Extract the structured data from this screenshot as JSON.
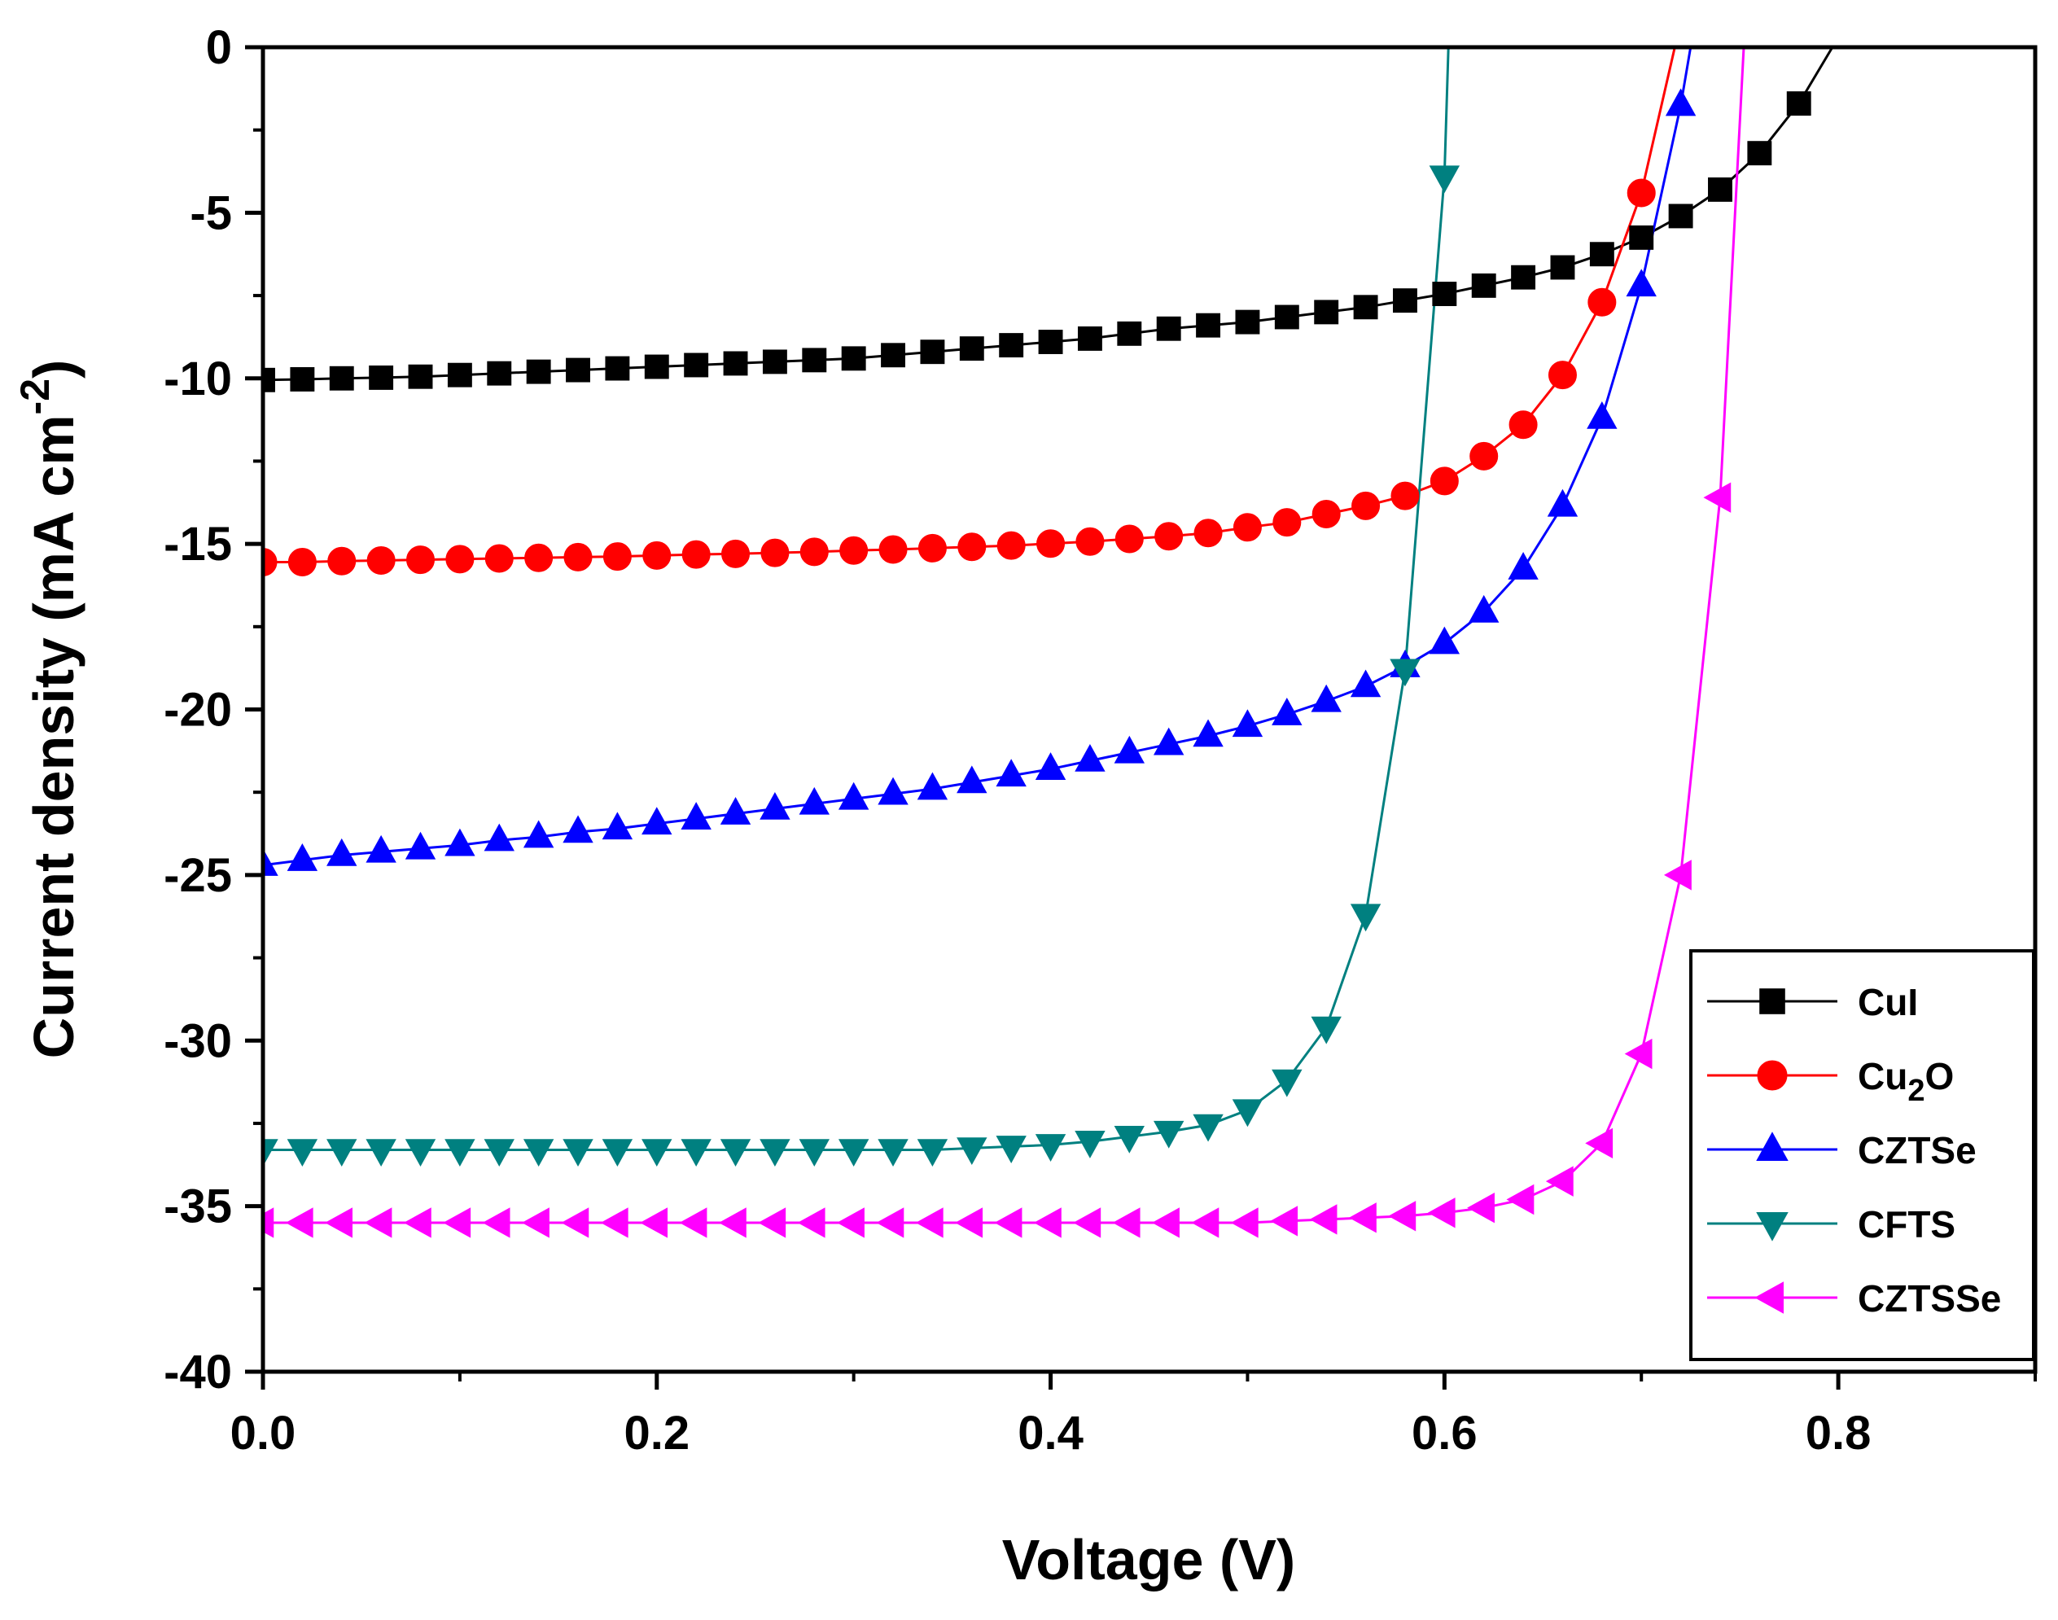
{
  "chart_data": {
    "type": "line",
    "xlabel": "Voltage (V)",
    "ylabel": {
      "prefix": "Current density (mA cm",
      "superscript": "-2",
      "suffix": ")"
    },
    "xlim": [
      0,
      0.9
    ],
    "ylim": [
      -40,
      0
    ],
    "xticks": [
      0.0,
      0.2,
      0.4,
      0.6,
      0.8
    ],
    "xtick_labels": [
      "0.0",
      "0.2",
      "0.4",
      "0.6",
      "0.8"
    ],
    "yticks": [
      0,
      -5,
      -10,
      -15,
      -20,
      -25,
      -30,
      -35,
      -40
    ],
    "ytick_labels": [
      "0",
      "-5",
      "-10",
      "-15",
      "-20",
      "-25",
      "-30",
      "-35",
      "-40"
    ],
    "legend_position": "bottom-right",
    "series": [
      {
        "name": "CuI",
        "label_main": "CuI",
        "label_sub": "",
        "label_tail": "",
        "color": "#000000",
        "marker": "square",
        "x": [
          0.0,
          0.02,
          0.04,
          0.06,
          0.08,
          0.1,
          0.12,
          0.14,
          0.16,
          0.18,
          0.2,
          0.22,
          0.24,
          0.26,
          0.28,
          0.3,
          0.32,
          0.34,
          0.36,
          0.38,
          0.4,
          0.42,
          0.44,
          0.46,
          0.48,
          0.5,
          0.52,
          0.54,
          0.56,
          0.58,
          0.6,
          0.62,
          0.64,
          0.66,
          0.68,
          0.7,
          0.72,
          0.74,
          0.76,
          0.78,
          0.797
        ],
        "y": [
          -10.05,
          -10.03,
          -10.0,
          -9.98,
          -9.95,
          -9.9,
          -9.85,
          -9.8,
          -9.75,
          -9.7,
          -9.65,
          -9.6,
          -9.55,
          -9.5,
          -9.45,
          -9.4,
          -9.3,
          -9.2,
          -9.1,
          -9.0,
          -8.9,
          -8.8,
          -8.65,
          -8.5,
          -8.4,
          -8.3,
          -8.15,
          -8.0,
          -7.85,
          -7.65,
          -7.45,
          -7.2,
          -6.95,
          -6.65,
          -6.25,
          -5.75,
          -5.1,
          -4.3,
          -3.2,
          -1.7,
          0.0
        ],
        "marker_indices": [
          0,
          1,
          2,
          3,
          4,
          5,
          6,
          7,
          8,
          9,
          10,
          11,
          12,
          13,
          14,
          15,
          16,
          17,
          18,
          19,
          20,
          21,
          22,
          23,
          24,
          25,
          26,
          27,
          28,
          29,
          30,
          31,
          32,
          33,
          34,
          35,
          36,
          37,
          38,
          39
        ]
      },
      {
        "name": "Cu2O",
        "label_main": "Cu",
        "label_sub": "2",
        "label_tail": "O",
        "color": "#ff0000",
        "marker": "circle",
        "x": [
          0.0,
          0.02,
          0.04,
          0.06,
          0.08,
          0.1,
          0.12,
          0.14,
          0.16,
          0.18,
          0.2,
          0.22,
          0.24,
          0.26,
          0.28,
          0.3,
          0.32,
          0.34,
          0.36,
          0.38,
          0.4,
          0.42,
          0.44,
          0.46,
          0.48,
          0.5,
          0.52,
          0.54,
          0.56,
          0.58,
          0.6,
          0.62,
          0.64,
          0.66,
          0.68,
          0.7,
          0.717
        ],
        "y": [
          -15.55,
          -15.55,
          -15.52,
          -15.5,
          -15.48,
          -15.46,
          -15.44,
          -15.42,
          -15.4,
          -15.38,
          -15.35,
          -15.32,
          -15.3,
          -15.27,
          -15.24,
          -15.2,
          -15.17,
          -15.13,
          -15.09,
          -15.05,
          -14.99,
          -14.93,
          -14.85,
          -14.77,
          -14.67,
          -14.5,
          -14.35,
          -14.1,
          -13.85,
          -13.55,
          -13.1,
          -12.35,
          -11.4,
          -9.9,
          -7.7,
          -4.4,
          0.0
        ],
        "marker_indices": [
          0,
          1,
          2,
          3,
          4,
          5,
          6,
          7,
          8,
          9,
          10,
          11,
          12,
          13,
          14,
          15,
          16,
          17,
          18,
          19,
          20,
          21,
          22,
          23,
          24,
          25,
          26,
          27,
          28,
          29,
          30,
          31,
          32,
          33,
          34,
          35
        ]
      },
      {
        "name": "CZTSe",
        "label_main": "CZTSe",
        "label_sub": "",
        "label_tail": "",
        "color": "#0000ff",
        "marker": "triangle-up",
        "x": [
          0.0,
          0.02,
          0.04,
          0.06,
          0.08,
          0.1,
          0.12,
          0.14,
          0.16,
          0.18,
          0.2,
          0.22,
          0.24,
          0.26,
          0.28,
          0.3,
          0.32,
          0.34,
          0.36,
          0.38,
          0.4,
          0.42,
          0.44,
          0.46,
          0.48,
          0.5,
          0.52,
          0.54,
          0.56,
          0.58,
          0.6,
          0.62,
          0.64,
          0.66,
          0.68,
          0.7,
          0.72,
          0.725
        ],
        "y": [
          -24.7,
          -24.55,
          -24.4,
          -24.3,
          -24.2,
          -24.1,
          -23.95,
          -23.85,
          -23.7,
          -23.6,
          -23.45,
          -23.3,
          -23.15,
          -23.0,
          -22.85,
          -22.7,
          -22.55,
          -22.4,
          -22.2,
          -22.0,
          -21.8,
          -21.55,
          -21.3,
          -21.05,
          -20.8,
          -20.5,
          -20.15,
          -19.75,
          -19.3,
          -18.7,
          -18.0,
          -17.05,
          -15.75,
          -13.85,
          -11.2,
          -7.2,
          -1.75,
          0.0
        ],
        "marker_indices": [
          0,
          1,
          2,
          3,
          4,
          5,
          6,
          7,
          8,
          9,
          10,
          11,
          12,
          13,
          14,
          15,
          16,
          17,
          18,
          19,
          20,
          21,
          22,
          23,
          24,
          25,
          26,
          27,
          28,
          29,
          30,
          31,
          32,
          33,
          34,
          35,
          36
        ]
      },
      {
        "name": "CFTS",
        "label_main": "CFTS",
        "label_sub": "",
        "label_tail": "",
        "color": "#008080",
        "marker": "triangle-down",
        "x": [
          0.0,
          0.02,
          0.04,
          0.06,
          0.08,
          0.1,
          0.12,
          0.14,
          0.16,
          0.18,
          0.2,
          0.22,
          0.24,
          0.26,
          0.28,
          0.3,
          0.32,
          0.34,
          0.36,
          0.38,
          0.4,
          0.42,
          0.44,
          0.46,
          0.48,
          0.5,
          0.52,
          0.54,
          0.56,
          0.58,
          0.6,
          0.602
        ],
        "y": [
          -33.3,
          -33.3,
          -33.3,
          -33.3,
          -33.3,
          -33.3,
          -33.3,
          -33.3,
          -33.3,
          -33.3,
          -33.3,
          -33.3,
          -33.3,
          -33.3,
          -33.3,
          -33.3,
          -33.3,
          -33.3,
          -33.25,
          -33.2,
          -33.15,
          -33.05,
          -32.9,
          -32.75,
          -32.55,
          -32.1,
          -31.2,
          -29.6,
          -26.2,
          -18.8,
          -3.9,
          0.0
        ],
        "marker_indices": [
          0,
          1,
          2,
          3,
          4,
          5,
          6,
          7,
          8,
          9,
          10,
          11,
          12,
          13,
          14,
          15,
          16,
          17,
          18,
          19,
          20,
          21,
          22,
          23,
          24,
          25,
          26,
          27,
          28,
          29,
          30
        ]
      },
      {
        "name": "CZTSSe",
        "label_main": "CZTSSe",
        "label_sub": "",
        "label_tail": "",
        "color": "#ff00ff",
        "marker": "triangle-left",
        "x": [
          0.0,
          0.02,
          0.04,
          0.06,
          0.08,
          0.1,
          0.12,
          0.14,
          0.16,
          0.18,
          0.2,
          0.22,
          0.24,
          0.26,
          0.28,
          0.3,
          0.32,
          0.34,
          0.36,
          0.38,
          0.4,
          0.42,
          0.44,
          0.46,
          0.48,
          0.5,
          0.52,
          0.54,
          0.56,
          0.58,
          0.6,
          0.62,
          0.64,
          0.66,
          0.68,
          0.7,
          0.72,
          0.74,
          0.752
        ],
        "y": [
          -35.5,
          -35.5,
          -35.5,
          -35.5,
          -35.5,
          -35.5,
          -35.5,
          -35.5,
          -35.5,
          -35.5,
          -35.5,
          -35.5,
          -35.5,
          -35.5,
          -35.5,
          -35.5,
          -35.5,
          -35.5,
          -35.5,
          -35.5,
          -35.5,
          -35.5,
          -35.5,
          -35.5,
          -35.5,
          -35.5,
          -35.45,
          -35.4,
          -35.35,
          -35.3,
          -35.2,
          -35.05,
          -34.8,
          -34.25,
          -33.1,
          -30.4,
          -25.0,
          -13.6,
          0.0
        ],
        "marker_indices": [
          0,
          1,
          2,
          3,
          4,
          5,
          6,
          7,
          8,
          9,
          10,
          11,
          12,
          13,
          14,
          15,
          16,
          17,
          18,
          19,
          20,
          21,
          22,
          23,
          24,
          25,
          26,
          27,
          28,
          29,
          30,
          31,
          32,
          33,
          34,
          35,
          36,
          37
        ]
      }
    ]
  }
}
